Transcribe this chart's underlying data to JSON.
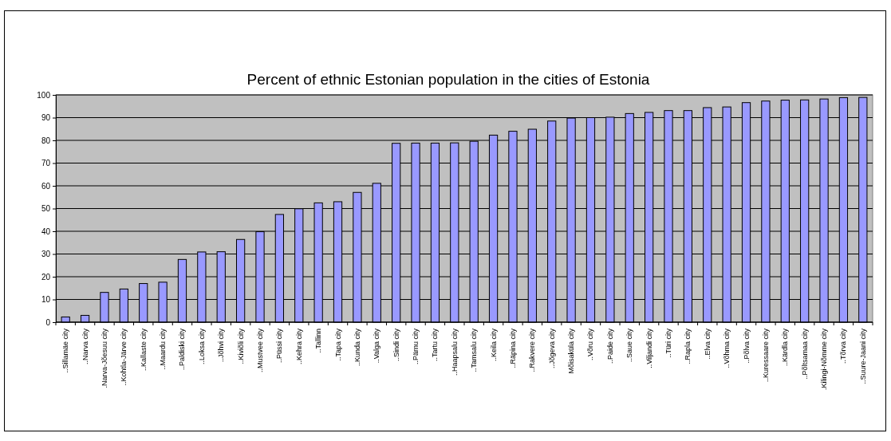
{
  "chart_data": {
    "type": "bar",
    "title": "Percent of ethnic Estonian population in the cities of Estonia",
    "categories": [
      "..Sillamäe city",
      "..Narva city",
      ".Narva-Jõesuu city",
      "..Kohtla-Järve city",
      "..Kallaste city",
      "..Maardu city",
      "..Paldiski city",
      "..Loksa city",
      "..Jõhvi city",
      "..Kiviõli city",
      "..Mustvee city",
      "..Püssi city",
      "..Kehra city",
      "..Tallinn",
      "..Tapa city",
      "..Kunda city",
      "..Valga city",
      "..Sindi city",
      "..Pärnu city",
      "..Tartu city",
      "..Haapsalu city",
      "..Tamsalu city",
      "..Keila city",
      "..Räpina city",
      "..Rakvere city",
      "..Jõgeva city",
      "Mõisaküla city",
      "..Võru city",
      "..Paide city",
      "..Saue city",
      "..Viljandi city",
      "..Türi city",
      "..Rapla city",
      "..Elva city",
      "..Võhma city",
      "..Põlva city",
      "..Kuressaare city",
      "..Kärdla city",
      "..Põltsamaa city",
      ".Kilingi-Nõmme city",
      "..Tõrva city",
      "..Suure-Jaani city"
    ],
    "values": [
      2.3,
      3.0,
      13.1,
      14.6,
      17.0,
      17.6,
      27.6,
      30.9,
      31.0,
      36.4,
      39.8,
      47.4,
      49.9,
      52.5,
      53.0,
      57.1,
      61.1,
      78.7,
      78.8,
      78.8,
      78.9,
      79.6,
      82.3,
      84.0,
      84.9,
      88.5,
      89.8,
      90.0,
      90.2,
      91.8,
      92.3,
      93.1,
      93.1,
      94.4,
      94.7,
      96.6,
      97.3,
      97.7,
      97.8,
      98.2,
      98.8,
      98.9
    ],
    "color": "#9999ff",
    "ylim": [
      0,
      100
    ],
    "yticks": [
      0,
      10,
      20,
      30,
      40,
      50,
      60,
      70,
      80,
      90,
      100
    ],
    "grid": "y"
  }
}
